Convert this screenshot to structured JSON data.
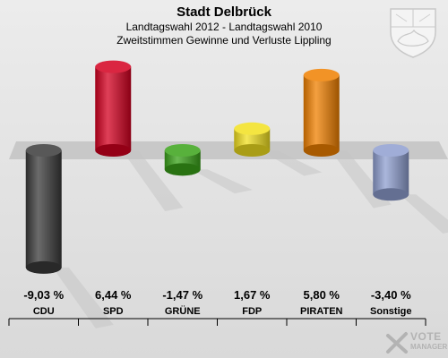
{
  "header": {
    "title": "Stadt Delbrück",
    "subtitle1": "Landtagswahl 2012 - Landtagswahl 2010",
    "subtitle2": "Zweitstimmen Gewinne und Verluste Lippling"
  },
  "logo": {
    "line1": "VOTE",
    "line2": "MANAGER"
  },
  "chart_data": {
    "type": "bar",
    "title": "Stadt Delbrück",
    "subtitle": "Landtagswahl 2012 - Landtagswahl 2010 · Zweitstimmen Gewinne und Verluste Lippling",
    "categories": [
      "CDU",
      "SPD",
      "GRÜNE",
      "FDP",
      "PIRATEN",
      "Sonstige"
    ],
    "values": [
      -9.03,
      6.44,
      -1.47,
      1.67,
      5.8,
      -3.4
    ],
    "labels": [
      "-9,03 %",
      "6,44 %",
      "-1,47 %",
      "1,67 %",
      "5,80 %",
      "-3,40 %"
    ],
    "colors": [
      "#3a3a3a",
      "#d40020",
      "#3aa31a",
      "#f2e020",
      "#f08000",
      "#8f9fd0"
    ],
    "ylim": [
      -10,
      8
    ],
    "xlabel": "",
    "ylabel": "",
    "grid": false,
    "legend": "none"
  }
}
